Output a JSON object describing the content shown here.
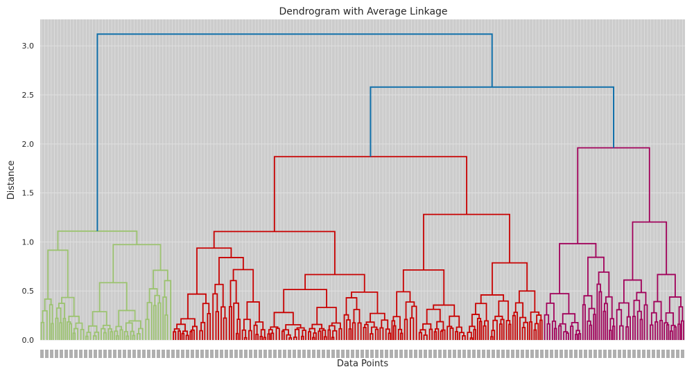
{
  "chart_data": {
    "type": "dendrogram",
    "title": "Dendrogram with Average Linkage",
    "xlabel": "Data Points",
    "ylabel": "Distance",
    "ylim": [
      0,
      3.27
    ],
    "yticks": [
      0.0,
      0.5,
      1.0,
      1.5,
      2.0,
      2.5,
      3.0
    ],
    "ytick_labels": [
      "0.0",
      "0.5",
      "1.0",
      "1.5",
      "2.0",
      "2.5",
      "3.0"
    ],
    "grid": true,
    "background": "#cccccc",
    "grid_color": "#e0e0e0",
    "link_color_above_threshold": "#1170aa",
    "clusters": [
      {
        "color": "#9cc370",
        "merge_height": 1.11,
        "leaf_start": 0.0,
        "leaf_end": 0.205
      },
      {
        "color": "#c80000",
        "merge_height": 1.87,
        "leaf_start": 0.205,
        "leaf_end": 0.78
      },
      {
        "color": "#a1005a",
        "merge_height": 1.96,
        "leaf_start": 0.78,
        "leaf_end": 1.0
      }
    ],
    "top_links": [
      {
        "height": 2.58,
        "joins": "red + magenta"
      },
      {
        "height": 3.12,
        "joins": "green + (red + magenta)"
      }
    ]
  }
}
